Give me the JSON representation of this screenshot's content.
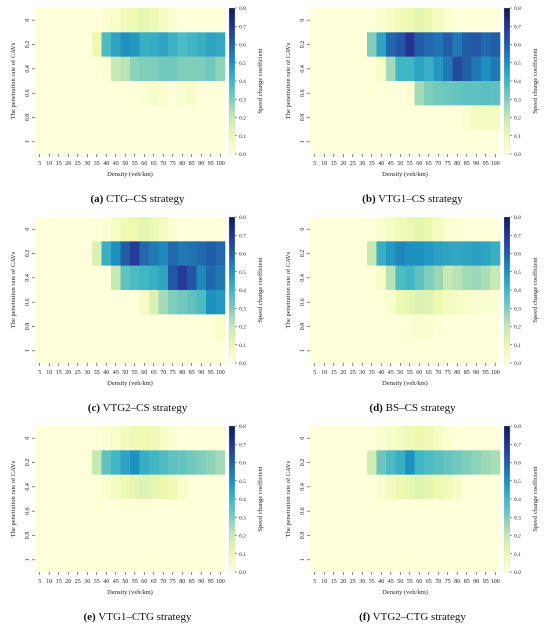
{
  "figure": {
    "ylabel": "The penetration rate of CAVs",
    "xlabel": "Density (veh/km)",
    "colorbar_label": "Speed change coefficient",
    "colorbar_ticks": [
      "0.0",
      "0.1",
      "0.2",
      "0.3",
      "0.4",
      "0.5",
      "0.6",
      "0.7",
      "0.8"
    ],
    "colormap": [
      "#ffffd9",
      "#edf8b1",
      "#c7e9b4",
      "#7fcdbb",
      "#41b6c4",
      "#1d91c0",
      "#225ea8",
      "#253494",
      "#081d58"
    ]
  },
  "chart_data": [
    {
      "type": "heatmap",
      "caption_letter": "(a)",
      "caption_text": " CTG–CS strategy",
      "x": [
        "5",
        "10",
        "15",
        "20",
        "25",
        "30",
        "35",
        "40",
        "45",
        "50",
        "55",
        "60",
        "65",
        "70",
        "75",
        "80",
        "85",
        "90",
        "95",
        "100"
      ],
      "y": [
        "0",
        "0.2",
        "0.4",
        "0.6",
        "0.8",
        "1"
      ],
      "vmin": 0,
      "vmax": 0.8,
      "values": [
        [
          0,
          0,
          0,
          0,
          0,
          0,
          0,
          0.02,
          0.04,
          0.08,
          0.1,
          0.12,
          0.09,
          0.06,
          0.02,
          0,
          0,
          0,
          0,
          0
        ],
        [
          0,
          0,
          0,
          0,
          0,
          0,
          0.1,
          0.38,
          0.45,
          0.5,
          0.48,
          0.42,
          0.43,
          0.45,
          0.41,
          0.38,
          0.4,
          0.42,
          0.45,
          0.44
        ],
        [
          0,
          0,
          0,
          0,
          0,
          0,
          0,
          0.02,
          0.2,
          0.22,
          0.28,
          0.3,
          0.3,
          0.32,
          0.32,
          0.3,
          0.3,
          0.3,
          0.32,
          0.28
        ],
        [
          0,
          0,
          0,
          0,
          0,
          0,
          0,
          0,
          0,
          0,
          0,
          0.02,
          0.04,
          0.02,
          0,
          0.03,
          0.04,
          0,
          0,
          0
        ],
        [
          0,
          0,
          0,
          0,
          0,
          0,
          0,
          0,
          0,
          0,
          0,
          0,
          0,
          0,
          0,
          0,
          0,
          0,
          0,
          0
        ],
        [
          0,
          0,
          0,
          0,
          0,
          0,
          0,
          0,
          0,
          0,
          0,
          0,
          0,
          0,
          0,
          0,
          0,
          0,
          0,
          0
        ]
      ]
    },
    {
      "type": "heatmap",
      "caption_letter": "(b)",
      "caption_text": " VTG1–CS strategy",
      "x": [
        "5",
        "10",
        "15",
        "20",
        "25",
        "30",
        "35",
        "40",
        "45",
        "50",
        "55",
        "60",
        "65",
        "70",
        "75",
        "80",
        "85",
        "90",
        "95",
        "100"
      ],
      "y": [
        "0",
        "0.2",
        "0.4",
        "0.6",
        "0.8",
        "1"
      ],
      "vmin": 0,
      "vmax": 0.8,
      "values": [
        [
          0,
          0,
          0,
          0,
          0,
          0,
          0,
          0.02,
          0.05,
          0.08,
          0.1,
          0.12,
          0.1,
          0.06,
          0.02,
          0,
          0,
          0,
          0,
          0
        ],
        [
          0,
          0,
          0,
          0,
          0,
          0,
          0.3,
          0.45,
          0.58,
          0.62,
          0.7,
          0.6,
          0.58,
          0.56,
          0.6,
          0.55,
          0.6,
          0.62,
          0.58,
          0.6
        ],
        [
          0,
          0,
          0,
          0,
          0,
          0,
          0,
          0.05,
          0.25,
          0.4,
          0.4,
          0.45,
          0.42,
          0.48,
          0.55,
          0.65,
          0.6,
          0.55,
          0.5,
          0.55
        ],
        [
          0,
          0,
          0,
          0,
          0,
          0,
          0,
          0,
          0,
          0,
          0.02,
          0.25,
          0.3,
          0.32,
          0.33,
          0.34,
          0.35,
          0.35,
          0.36,
          0.35
        ],
        [
          0,
          0,
          0,
          0,
          0,
          0,
          0,
          0,
          0,
          0,
          0,
          0,
          0,
          0,
          0,
          0,
          0.03,
          0.06,
          0.06,
          0.06
        ],
        [
          0,
          0,
          0,
          0,
          0,
          0,
          0,
          0,
          0,
          0,
          0,
          0,
          0,
          0,
          0,
          0,
          0,
          0,
          0,
          0
        ]
      ]
    },
    {
      "type": "heatmap",
      "caption_letter": "(c)",
      "caption_text": " VTG2–CS strategy",
      "x": [
        "5",
        "10",
        "15",
        "20",
        "25",
        "30",
        "35",
        "40",
        "45",
        "50",
        "55",
        "60",
        "65",
        "70",
        "75",
        "80",
        "85",
        "90",
        "95",
        "100"
      ],
      "y": [
        "0",
        "0.2",
        "0.4",
        "0.6",
        "0.8",
        "1"
      ],
      "vmin": 0,
      "vmax": 0.8,
      "values": [
        [
          0,
          0,
          0,
          0,
          0,
          0,
          0,
          0.02,
          0.05,
          0.08,
          0.1,
          0.12,
          0.1,
          0.06,
          0.02,
          0,
          0,
          0,
          0,
          0
        ],
        [
          0,
          0,
          0,
          0,
          0,
          0,
          0.15,
          0.42,
          0.5,
          0.6,
          0.68,
          0.58,
          0.55,
          0.52,
          0.58,
          0.55,
          0.56,
          0.58,
          0.6,
          0.58
        ],
        [
          0,
          0,
          0,
          0,
          0,
          0,
          0,
          0,
          0.2,
          0.35,
          0.38,
          0.4,
          0.42,
          0.45,
          0.62,
          0.68,
          0.62,
          0.52,
          0.58,
          0.55
        ],
        [
          0,
          0,
          0,
          0,
          0,
          0,
          0,
          0,
          0,
          0,
          0,
          0.05,
          0.15,
          0.25,
          0.3,
          0.32,
          0.35,
          0.38,
          0.5,
          0.48
        ],
        [
          0,
          0,
          0,
          0,
          0,
          0,
          0,
          0,
          0,
          0,
          0,
          0,
          0,
          0,
          0,
          0,
          0,
          0,
          0,
          0.04
        ],
        [
          0,
          0,
          0,
          0,
          0,
          0,
          0,
          0,
          0,
          0,
          0,
          0,
          0,
          0,
          0,
          0,
          0,
          0,
          0,
          0
        ]
      ]
    },
    {
      "type": "heatmap",
      "caption_letter": "(d)",
      "caption_text": " BS–CS strategy",
      "x": [
        "5",
        "10",
        "15",
        "20",
        "25",
        "30",
        "35",
        "40",
        "45",
        "50",
        "55",
        "60",
        "65",
        "70",
        "75",
        "80",
        "85",
        "90",
        "95",
        "100"
      ],
      "y": [
        "0",
        "0.2",
        "0.4",
        "0.6",
        "0.8",
        "1"
      ],
      "vmin": 0,
      "vmax": 0.8,
      "values": [
        [
          0,
          0,
          0,
          0,
          0,
          0,
          0,
          0.02,
          0.05,
          0.08,
          0.1,
          0.12,
          0.1,
          0.06,
          0.02,
          0,
          0,
          0,
          0,
          0
        ],
        [
          0,
          0,
          0,
          0,
          0,
          0,
          0.2,
          0.42,
          0.48,
          0.52,
          0.5,
          0.5,
          0.48,
          0.46,
          0.45,
          0.44,
          0.45,
          0.46,
          0.45,
          0.42
        ],
        [
          0,
          0,
          0,
          0,
          0,
          0,
          0,
          0.05,
          0.22,
          0.38,
          0.4,
          0.35,
          0.3,
          0.26,
          0.2,
          0.22,
          0.25,
          0.26,
          0.24,
          0.2
        ],
        [
          0,
          0,
          0,
          0,
          0,
          0,
          0,
          0,
          0.03,
          0.1,
          0.12,
          0.15,
          0.14,
          0.1,
          0.06,
          0.05,
          0.04,
          0.03,
          0.02,
          0.02
        ],
        [
          0,
          0,
          0,
          0,
          0,
          0,
          0,
          0,
          0,
          0,
          0.02,
          0.03,
          0.03,
          0.01,
          0,
          0,
          0,
          0,
          0,
          0
        ],
        [
          0,
          0,
          0,
          0,
          0,
          0,
          0,
          0,
          0,
          0,
          0,
          0,
          0,
          0,
          0,
          0,
          0,
          0,
          0,
          0
        ]
      ]
    },
    {
      "type": "heatmap",
      "caption_letter": "(e)",
      "caption_text": " VTG1–CTG strategy",
      "x": [
        "5",
        "10",
        "15",
        "20",
        "25",
        "30",
        "35",
        "40",
        "45",
        "50",
        "55",
        "60",
        "65",
        "70",
        "75",
        "80",
        "85",
        "90",
        "95",
        "100"
      ],
      "y": [
        "0",
        "0.2",
        "0.4",
        "0.6",
        "0.8",
        "1"
      ],
      "vmin": 0,
      "vmax": 0.8,
      "values": [
        [
          0,
          0,
          0,
          0,
          0,
          0,
          0,
          0.02,
          0.04,
          0.06,
          0.08,
          0.1,
          0.08,
          0.05,
          0.02,
          0,
          0,
          0,
          0,
          0
        ],
        [
          0,
          0,
          0,
          0,
          0,
          0,
          0.2,
          0.35,
          0.4,
          0.45,
          0.5,
          0.42,
          0.4,
          0.38,
          0.35,
          0.34,
          0.32,
          0.3,
          0.28,
          0.25
        ],
        [
          0,
          0,
          0,
          0,
          0,
          0,
          0,
          0.03,
          0.06,
          0.1,
          0.12,
          0.14,
          0.12,
          0.1,
          0.08,
          0.04,
          0,
          0,
          0,
          0
        ],
        [
          0,
          0,
          0,
          0,
          0,
          0,
          0,
          0,
          0,
          0,
          0,
          0,
          0,
          0,
          0,
          0,
          0,
          0,
          0,
          0
        ],
        [
          0,
          0,
          0,
          0,
          0,
          0,
          0,
          0,
          0,
          0,
          0,
          0,
          0,
          0,
          0,
          0,
          0,
          0,
          0,
          0
        ],
        [
          0,
          0,
          0,
          0,
          0,
          0,
          0,
          0,
          0,
          0,
          0,
          0,
          0,
          0,
          0,
          0,
          0,
          0,
          0,
          0
        ]
      ]
    },
    {
      "type": "heatmap",
      "caption_letter": "(f)",
      "caption_text": " VTG2–CTG strategy",
      "x": [
        "5",
        "10",
        "15",
        "20",
        "25",
        "30",
        "35",
        "40",
        "45",
        "50",
        "55",
        "60",
        "65",
        "70",
        "75",
        "80",
        "85",
        "90",
        "95",
        "100"
      ],
      "y": [
        "0",
        "0.2",
        "0.4",
        "0.6",
        "0.8",
        "1"
      ],
      "vmin": 0,
      "vmax": 0.8,
      "values": [
        [
          0,
          0,
          0,
          0,
          0,
          0,
          0,
          0.02,
          0.04,
          0.06,
          0.08,
          0.1,
          0.08,
          0.05,
          0.02,
          0,
          0,
          0,
          0,
          0
        ],
        [
          0,
          0,
          0,
          0,
          0,
          0,
          0.18,
          0.33,
          0.38,
          0.42,
          0.5,
          0.4,
          0.38,
          0.36,
          0.34,
          0.32,
          0.3,
          0.28,
          0.26,
          0.24
        ],
        [
          0,
          0,
          0,
          0,
          0,
          0,
          0,
          0.03,
          0.06,
          0.1,
          0.12,
          0.14,
          0.12,
          0.1,
          0.08,
          0.05,
          0,
          0,
          0,
          0
        ],
        [
          0,
          0,
          0,
          0,
          0,
          0,
          0,
          0,
          0,
          0,
          0,
          0,
          0,
          0,
          0,
          0,
          0,
          0,
          0,
          0
        ],
        [
          0,
          0,
          0,
          0,
          0,
          0,
          0,
          0,
          0,
          0,
          0,
          0,
          0,
          0,
          0,
          0,
          0,
          0,
          0,
          0
        ],
        [
          0,
          0,
          0,
          0,
          0,
          0,
          0,
          0,
          0,
          0,
          0,
          0,
          0,
          0,
          0,
          0,
          0,
          0,
          0,
          0
        ]
      ]
    }
  ]
}
